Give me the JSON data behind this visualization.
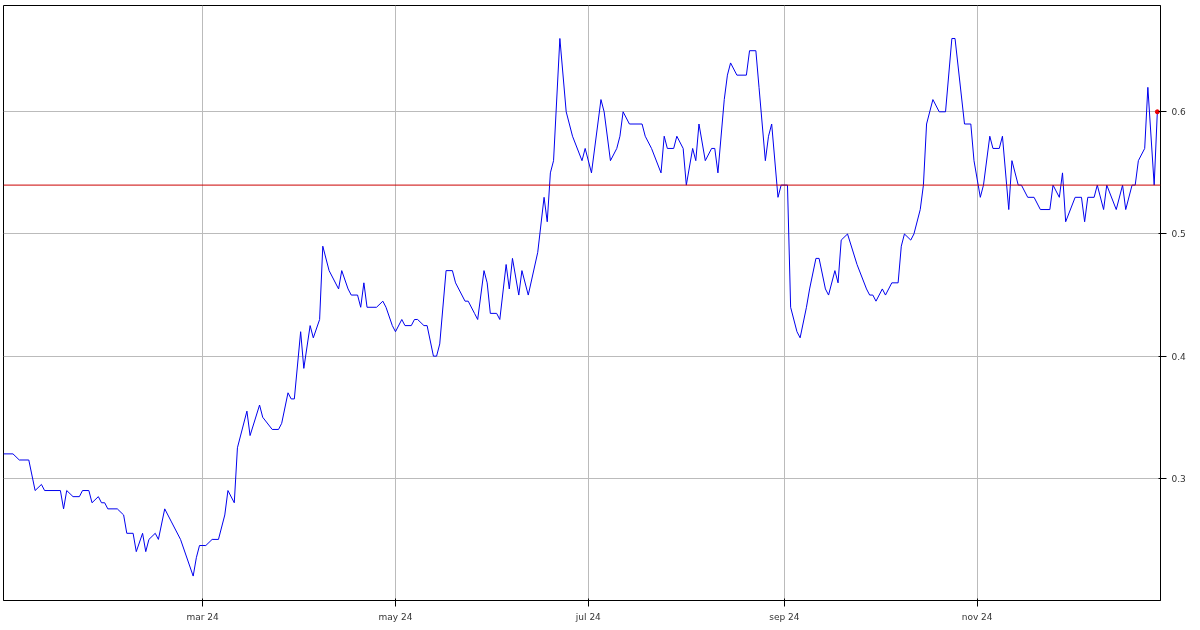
{
  "chart_data": {
    "type": "line",
    "xlim": [
      "2023-12-29",
      "2024-12-29"
    ],
    "xticks": [
      {
        "value": "2024-03-01",
        "label": "mar 24"
      },
      {
        "value": "2024-05-01",
        "label": "may 24"
      },
      {
        "value": "2024-07-01",
        "label": "jul 24"
      },
      {
        "value": "2024-09-01",
        "label": "sep 24"
      },
      {
        "value": "2024-11-01",
        "label": "nov 24"
      }
    ],
    "ylim": [
      0.2,
      0.687
    ],
    "yticks": [
      0.3,
      0.4,
      0.5,
      0.6
    ],
    "grid": true,
    "ref_lines": [
      {
        "axis": "y",
        "value": 0.54,
        "color": "#cc0000"
      }
    ],
    "series": [
      {
        "color": "#0000ee",
        "x": [
          "2023-12-29",
          "2024-01-01",
          "2024-01-03",
          "2024-01-06",
          "2024-01-08",
          "2024-01-10",
          "2024-01-11",
          "2024-01-16",
          "2024-01-17",
          "2024-01-18",
          "2024-01-20",
          "2024-01-22",
          "2024-01-23",
          "2024-01-25",
          "2024-01-26",
          "2024-01-28",
          "2024-01-29",
          "2024-01-30",
          "2024-01-31",
          "2024-02-03",
          "2024-02-05",
          "2024-02-06",
          "2024-02-08",
          "2024-02-09",
          "2024-02-11",
          "2024-02-12",
          "2024-02-13",
          "2024-02-15",
          "2024-02-16",
          "2024-02-18",
          "2024-02-20",
          "2024-02-23",
          "2024-02-27",
          "2024-02-28",
          "2024-02-29",
          "2024-03-02",
          "2024-03-04",
          "2024-03-06",
          "2024-03-08",
          "2024-03-09",
          "2024-03-11",
          "2024-03-12",
          "2024-03-15",
          "2024-03-16",
          "2024-03-19",
          "2024-03-20",
          "2024-03-23",
          "2024-03-25",
          "2024-03-26",
          "2024-03-28",
          "2024-03-29",
          "2024-03-30",
          "2024-04-01",
          "2024-04-02",
          "2024-04-04",
          "2024-04-05",
          "2024-04-07",
          "2024-04-08",
          "2024-04-10",
          "2024-04-13",
          "2024-04-14",
          "2024-04-16",
          "2024-04-17",
          "2024-04-19",
          "2024-04-20",
          "2024-04-21",
          "2024-04-22",
          "2024-04-25",
          "2024-04-27",
          "2024-04-28",
          "2024-04-30",
          "2024-05-01",
          "2024-05-03",
          "2024-05-04",
          "2024-05-06",
          "2024-05-07",
          "2024-05-08",
          "2024-05-10",
          "2024-05-11",
          "2024-05-13",
          "2024-05-14",
          "2024-05-15",
          "2024-05-17",
          "2024-05-19",
          "2024-05-20",
          "2024-05-23",
          "2024-05-24",
          "2024-05-26",
          "2024-05-27",
          "2024-05-29",
          "2024-05-30",
          "2024-05-31",
          "2024-06-02",
          "2024-06-03",
          "2024-06-05",
          "2024-06-06",
          "2024-06-07",
          "2024-06-09",
          "2024-06-10",
          "2024-06-12",
          "2024-06-15",
          "2024-06-17",
          "2024-06-18",
          "2024-06-19",
          "2024-06-20",
          "2024-06-22",
          "2024-06-24",
          "2024-06-26",
          "2024-06-29",
          "2024-06-30",
          "2024-07-02",
          "2024-07-04",
          "2024-07-05",
          "2024-07-06",
          "2024-07-08",
          "2024-07-10",
          "2024-07-11",
          "2024-07-12",
          "2024-07-14",
          "2024-07-18",
          "2024-07-19",
          "2024-07-21",
          "2024-07-24",
          "2024-07-25",
          "2024-07-26",
          "2024-07-28",
          "2024-07-29",
          "2024-07-31",
          "2024-08-01",
          "2024-08-03",
          "2024-08-04",
          "2024-08-05",
          "2024-08-07",
          "2024-08-09",
          "2024-08-10",
          "2024-08-11",
          "2024-08-13",
          "2024-08-14",
          "2024-08-15",
          "2024-08-17",
          "2024-08-20",
          "2024-08-21",
          "2024-08-23",
          "2024-08-24",
          "2024-08-26",
          "2024-08-27",
          "2024-08-28",
          "2024-08-30",
          "2024-08-31",
          "2024-09-02",
          "2024-09-03",
          "2024-09-05",
          "2024-09-06",
          "2024-09-08",
          "2024-09-09",
          "2024-09-11",
          "2024-09-12",
          "2024-09-14",
          "2024-09-15",
          "2024-09-17",
          "2024-09-18",
          "2024-09-19",
          "2024-09-21",
          "2024-09-24",
          "2024-09-27",
          "2024-09-28",
          "2024-09-29",
          "2024-09-30",
          "2024-10-02",
          "2024-10-03",
          "2024-10-05",
          "2024-10-07",
          "2024-10-08",
          "2024-10-09",
          "2024-10-11",
          "2024-10-12",
          "2024-10-14",
          "2024-10-15",
          "2024-10-16",
          "2024-10-18",
          "2024-10-20",
          "2024-10-22",
          "2024-10-24",
          "2024-10-25",
          "2024-10-28",
          "2024-10-30",
          "2024-10-31",
          "2024-11-02",
          "2024-11-03",
          "2024-11-05",
          "2024-11-06",
          "2024-11-08",
          "2024-11-09",
          "2024-11-11",
          "2024-11-12",
          "2024-11-14",
          "2024-11-15",
          "2024-11-17",
          "2024-11-19",
          "2024-11-21",
          "2024-11-24",
          "2024-11-25",
          "2024-11-27",
          "2024-11-28",
          "2024-11-29",
          "2024-12-02",
          "2024-12-04",
          "2024-12-05",
          "2024-12-06",
          "2024-12-08",
          "2024-12-09",
          "2024-12-11",
          "2024-12-12",
          "2024-12-15",
          "2024-12-17",
          "2024-12-18",
          "2024-12-20",
          "2024-12-21",
          "2024-12-22",
          "2024-12-24",
          "2024-12-25",
          "2024-12-27",
          "2024-12-28"
        ],
        "values": [
          0.32,
          0.32,
          0.315,
          0.315,
          0.29,
          0.295,
          0.29,
          0.29,
          0.275,
          0.29,
          0.285,
          0.285,
          0.29,
          0.29,
          0.28,
          0.285,
          0.28,
          0.28,
          0.275,
          0.275,
          0.27,
          0.255,
          0.255,
          0.24,
          0.255,
          0.24,
          0.25,
          0.255,
          0.25,
          0.275,
          0.265,
          0.25,
          0.22,
          0.235,
          0.245,
          0.245,
          0.25,
          0.25,
          0.27,
          0.29,
          0.28,
          0.325,
          0.355,
          0.335,
          0.36,
          0.35,
          0.34,
          0.34,
          0.345,
          0.37,
          0.365,
          0.365,
          0.42,
          0.39,
          0.425,
          0.415,
          0.43,
          0.49,
          0.47,
          0.455,
          0.47,
          0.455,
          0.45,
          0.45,
          0.44,
          0.46,
          0.44,
          0.44,
          0.445,
          0.44,
          0.425,
          0.42,
          0.43,
          0.425,
          0.425,
          0.43,
          0.43,
          0.425,
          0.425,
          0.4,
          0.4,
          0.41,
          0.47,
          0.47,
          0.46,
          0.445,
          0.445,
          0.435,
          0.43,
          0.47,
          0.46,
          0.435,
          0.435,
          0.43,
          0.475,
          0.455,
          0.48,
          0.45,
          0.47,
          0.45,
          0.485,
          0.53,
          0.51,
          0.55,
          0.56,
          0.66,
          0.6,
          0.58,
          0.56,
          0.57,
          0.55,
          0.59,
          0.61,
          0.6,
          0.56,
          0.57,
          0.58,
          0.6,
          0.59,
          0.59,
          0.58,
          0.57,
          0.55,
          0.58,
          0.57,
          0.57,
          0.58,
          0.57,
          0.54,
          0.57,
          0.56,
          0.59,
          0.56,
          0.57,
          0.57,
          0.55,
          0.61,
          0.63,
          0.64,
          0.63,
          0.63,
          0.65,
          0.65,
          0.62,
          0.56,
          0.58,
          0.59,
          0.53,
          0.54,
          0.54,
          0.44,
          0.42,
          0.415,
          0.44,
          0.455,
          0.48,
          0.48,
          0.455,
          0.45,
          0.47,
          0.46,
          0.495,
          0.5,
          0.475,
          0.455,
          0.45,
          0.45,
          0.445,
          0.455,
          0.45,
          0.46,
          0.46,
          0.49,
          0.5,
          0.495,
          0.5,
          0.52,
          0.54,
          0.59,
          0.61,
          0.6,
          0.6,
          0.66,
          0.66,
          0.59,
          0.59,
          0.56,
          0.53,
          0.54,
          0.58,
          0.57,
          0.57,
          0.58,
          0.52,
          0.56,
          0.54,
          0.54,
          0.53,
          0.53,
          0.52,
          0.52,
          0.54,
          0.53,
          0.55,
          0.51,
          0.53,
          0.53,
          0.51,
          0.53,
          0.53,
          0.54,
          0.52,
          0.54,
          0.52,
          0.54,
          0.52,
          0.54,
          0.54,
          0.56,
          0.57,
          0.62,
          0.54,
          0.6
        ]
      },
      {
        "type": "scatter",
        "color": "#ee0000",
        "marker": "circle",
        "x": [
          "2024-12-28"
        ],
        "values": [
          0.6
        ]
      }
    ]
  }
}
